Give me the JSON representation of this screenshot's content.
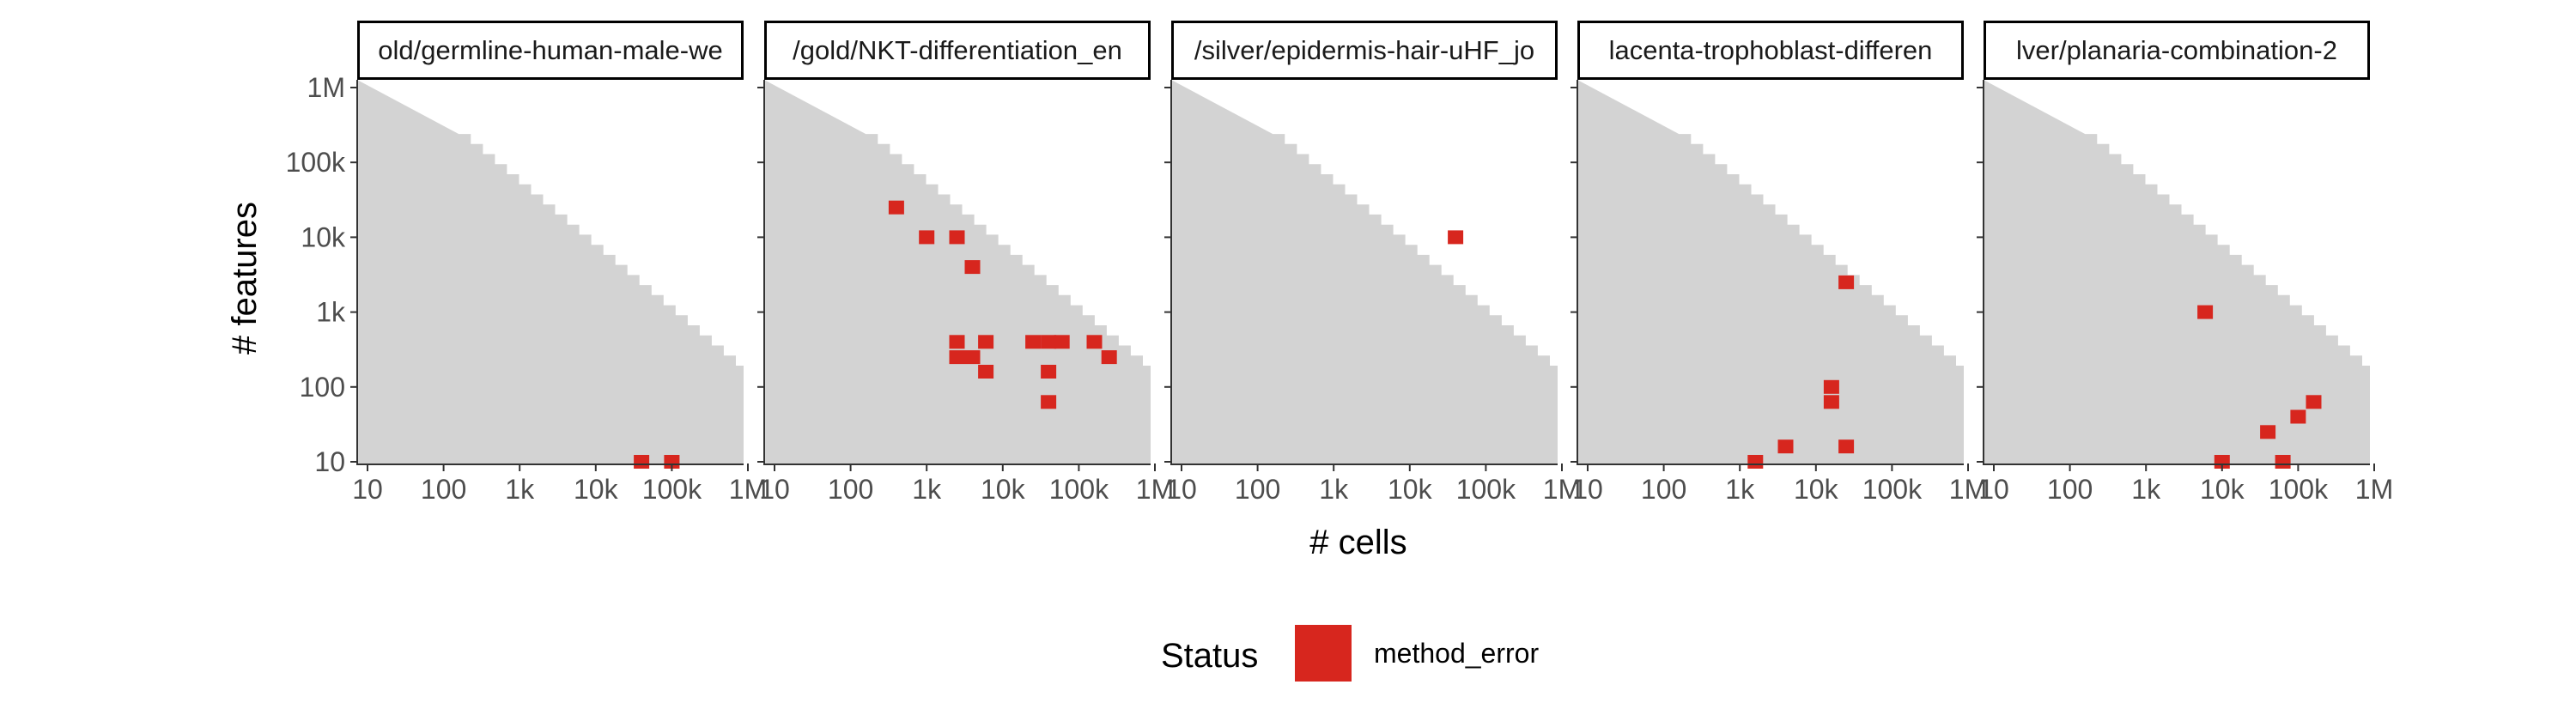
{
  "chart_data": {
    "type": "heatmap",
    "xlabel": "# cells",
    "ylabel": "# features",
    "x_scale": "log10",
    "y_scale": "log10",
    "xlim": [
      10,
      1000000
    ],
    "ylim": [
      10,
      1000000
    ],
    "x_ticks": [
      {
        "value": 10,
        "label": "10"
      },
      {
        "value": 100,
        "label": "100"
      },
      {
        "value": 1000,
        "label": "1k"
      },
      {
        "value": 10000,
        "label": "10k"
      },
      {
        "value": 100000,
        "label": "100k"
      },
      {
        "value": 1000000,
        "label": "1M"
      }
    ],
    "y_ticks": [
      {
        "value": 10,
        "label": "10"
      },
      {
        "value": 100,
        "label": "100"
      },
      {
        "value": 1000,
        "label": "1k"
      },
      {
        "value": 10000,
        "label": "10k"
      },
      {
        "value": 100000,
        "label": "100k"
      },
      {
        "value": 1000000,
        "label": "1M"
      }
    ],
    "legend": {
      "title": "Status",
      "position": "bottom",
      "entries": [
        {
          "label": "method_error",
          "color": "#d7261e"
        }
      ]
    },
    "background_region_color": "#d3d3d3",
    "panels": [
      {
        "title": "old/germline-human-male-we",
        "points": [
          {
            "cells": 40000,
            "features": 10,
            "status": "method_error"
          },
          {
            "cells": 100000,
            "features": 10,
            "status": "method_error"
          }
        ]
      },
      {
        "title": "/gold/NKT-differentiation_en",
        "points": [
          {
            "cells": 400,
            "features": 25000,
            "status": "method_error"
          },
          {
            "cells": 1000,
            "features": 10000,
            "status": "method_error"
          },
          {
            "cells": 2500,
            "features": 10000,
            "status": "method_error"
          },
          {
            "cells": 4000,
            "features": 4000,
            "status": "method_error"
          },
          {
            "cells": 2500,
            "features": 400,
            "status": "method_error"
          },
          {
            "cells": 2500,
            "features": 250,
            "status": "method_error"
          },
          {
            "cells": 4000,
            "features": 250,
            "status": "method_error"
          },
          {
            "cells": 6000,
            "features": 400,
            "status": "method_error"
          },
          {
            "cells": 6000,
            "features": 160,
            "status": "method_error"
          },
          {
            "cells": 25000,
            "features": 400,
            "status": "method_error"
          },
          {
            "cells": 40000,
            "features": 400,
            "status": "method_error"
          },
          {
            "cells": 60000,
            "features": 400,
            "status": "method_error"
          },
          {
            "cells": 40000,
            "features": 160,
            "status": "method_error"
          },
          {
            "cells": 40000,
            "features": 63,
            "status": "method_error"
          },
          {
            "cells": 160000,
            "features": 400,
            "status": "method_error"
          },
          {
            "cells": 250000,
            "features": 250,
            "status": "method_error"
          }
        ]
      },
      {
        "title": "/silver/epidermis-hair-uHF_jo",
        "points": [
          {
            "cells": 40000,
            "features": 10000,
            "status": "method_error"
          }
        ]
      },
      {
        "title": "lacenta-trophoblast-differen",
        "points": [
          {
            "cells": 25000,
            "features": 2500,
            "status": "method_error"
          },
          {
            "cells": 16000,
            "features": 100,
            "status": "method_error"
          },
          {
            "cells": 16000,
            "features": 63,
            "status": "method_error"
          },
          {
            "cells": 1600,
            "features": 10,
            "status": "method_error"
          },
          {
            "cells": 4000,
            "features": 16,
            "status": "method_error"
          },
          {
            "cells": 25000,
            "features": 16,
            "status": "method_error"
          }
        ]
      },
      {
        "title": "lver/planaria-combination-2",
        "points": [
          {
            "cells": 6000,
            "features": 1000,
            "status": "method_error"
          },
          {
            "cells": 10000,
            "features": 10,
            "status": "method_error"
          },
          {
            "cells": 40000,
            "features": 25,
            "status": "method_error"
          },
          {
            "cells": 63000,
            "features": 10,
            "status": "method_error"
          },
          {
            "cells": 100000,
            "features": 40,
            "status": "method_error"
          },
          {
            "cells": 160000,
            "features": 63,
            "status": "method_error"
          }
        ]
      }
    ]
  }
}
